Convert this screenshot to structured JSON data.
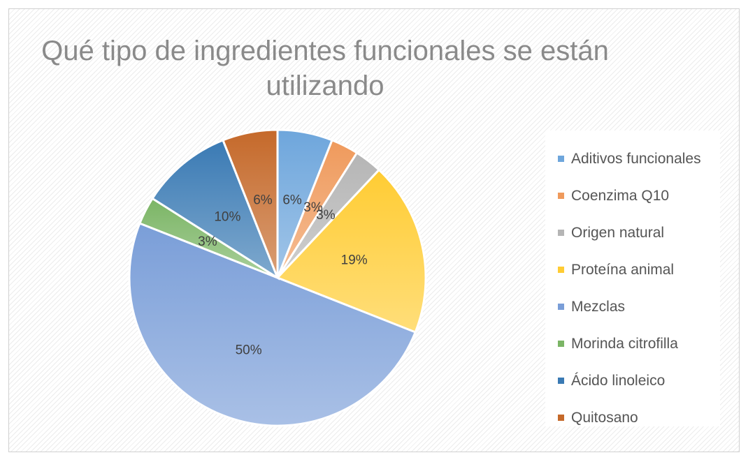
{
  "chart_data": {
    "type": "pie",
    "title_lines": [
      "Qué tipo de ingredientes funcionales se están",
      "utilizando"
    ],
    "legend_position": "right",
    "slices": [
      {
        "label": "Aditivos funcionales",
        "value": 6,
        "data_label": "6%",
        "color": "#6ea6dc"
      },
      {
        "label": "Coenzima Q10",
        "value": 3,
        "data_label": "3%",
        "color": "#ef9a5c"
      },
      {
        "label": "Origen natural",
        "value": 3,
        "data_label": "3%",
        "color": "#b5b5b5"
      },
      {
        "label": "Proteína animal",
        "value": 19,
        "data_label": "19%",
        "color": "#ffcc33"
      },
      {
        "label": "Mezclas",
        "value": 50,
        "data_label": "50%",
        "color": "#7a9ed8"
      },
      {
        "label": "Morinda citrofilla",
        "value": 3,
        "data_label": "3%",
        "color": "#7bb565"
      },
      {
        "label": "Ácido linoleico",
        "value": 10,
        "data_label": "10%",
        "color": "#3a7ab4"
      },
      {
        "label": "Quitosano",
        "value": 6,
        "data_label": "6%",
        "color": "#c5692a"
      }
    ]
  }
}
